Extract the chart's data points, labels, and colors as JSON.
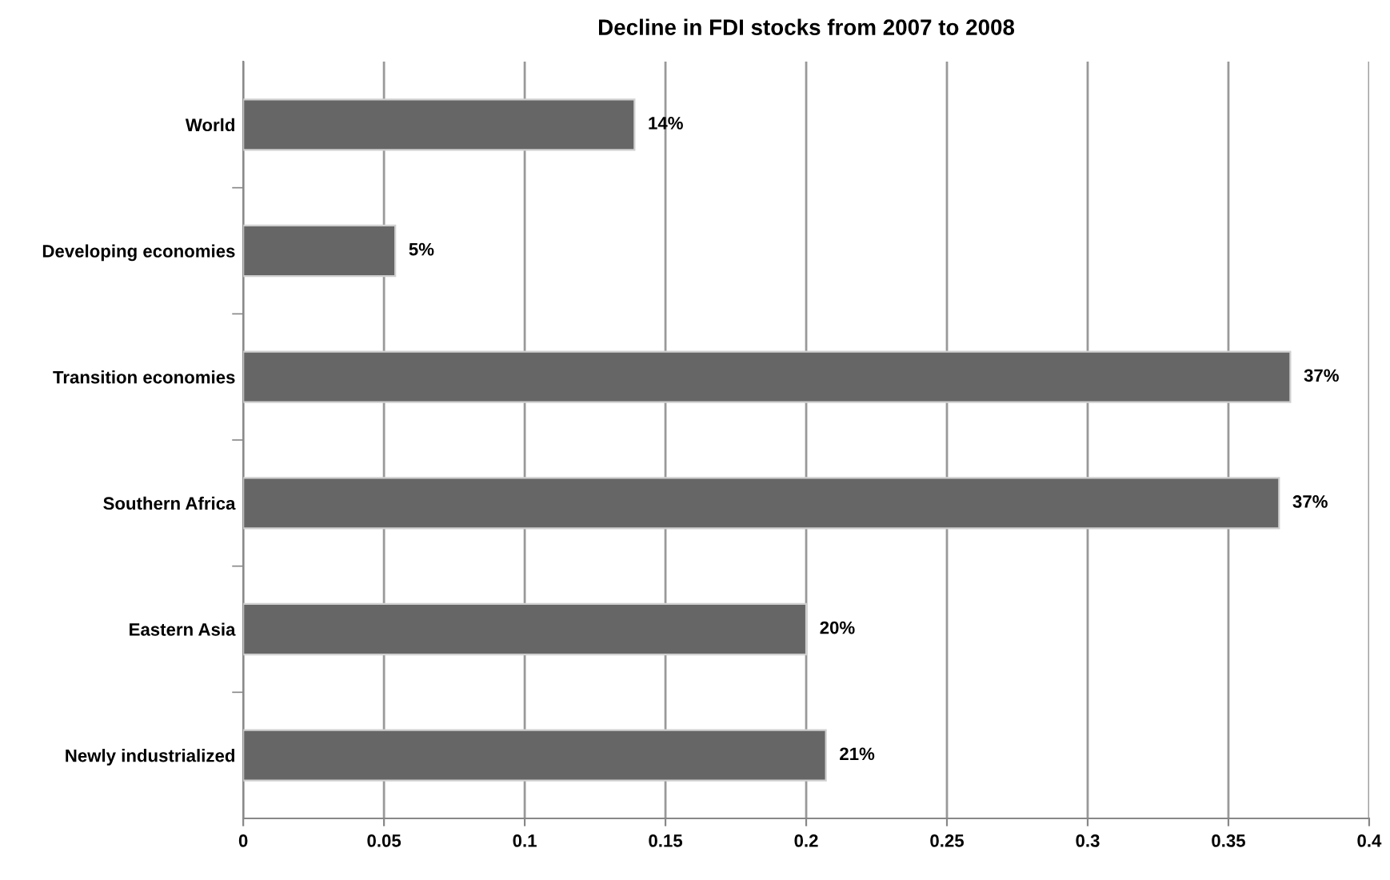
{
  "chart_data": {
    "type": "bar",
    "orientation": "horizontal",
    "title": "Decline in FDI stocks from 2007 to 2008",
    "categories": [
      "World",
      "Developing economies",
      "Transition economies",
      "Southern Africa",
      "Eastern Asia",
      "Newly industrialized"
    ],
    "values": [
      0.139,
      0.054,
      0.372,
      0.368,
      0.2,
      0.207
    ],
    "value_labels": [
      "14%",
      "5%",
      "37%",
      "37%",
      "20%",
      "21%"
    ],
    "color": "#666666",
    "xlim": [
      0,
      0.4
    ],
    "xticks": [
      0,
      0.05,
      0.1,
      0.15,
      0.2,
      0.25,
      0.3,
      0.35,
      0.4
    ],
    "grid": "x",
    "legend": false
  }
}
